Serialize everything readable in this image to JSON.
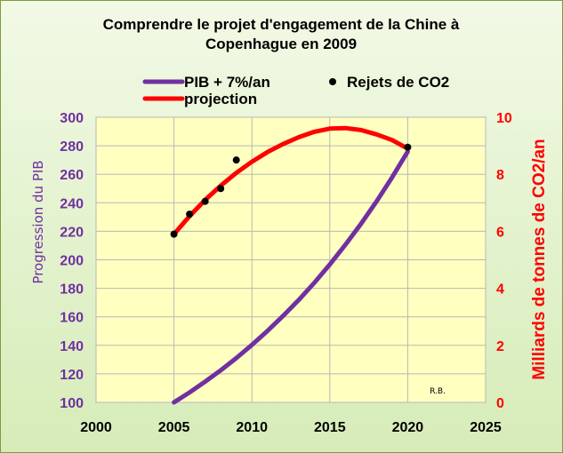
{
  "chart_data": {
    "type": "line",
    "title_lines": [
      "Comprendre le projet d'engagement de la Chine à",
      "Copenhague en 2009"
    ],
    "xlabel": "",
    "ylabel_left": "Progression du PIB",
    "ylabel_right": "Milliards de tonnes de CO2/an",
    "xlim": [
      2000,
      2025
    ],
    "ylim_left": [
      100,
      300
    ],
    "ylim_right": [
      0,
      10
    ],
    "x_ticks": [
      2000,
      2005,
      2010,
      2015,
      2020,
      2025
    ],
    "y_ticks_left": [
      100,
      120,
      140,
      160,
      180,
      200,
      220,
      240,
      260,
      280,
      300
    ],
    "y_ticks_right": [
      0,
      2,
      4,
      6,
      8,
      10
    ],
    "grid": true,
    "legend": {
      "placement": "top",
      "entries": [
        {
          "label": "PIB + 7%/an",
          "color": "#7030a0",
          "kind": "line"
        },
        {
          "label": "Rejets de CO2",
          "color": "#000000",
          "kind": "marker"
        },
        {
          "label": "projection",
          "color": "#ff0000",
          "kind": "line"
        }
      ]
    },
    "series": [
      {
        "name": "PIB + 7%/an",
        "axis": "left",
        "color": "#7030a0",
        "x": [
          2005,
          2006,
          2007,
          2008,
          2009,
          2010,
          2011,
          2012,
          2013,
          2014,
          2015,
          2016,
          2017,
          2018,
          2019,
          2020
        ],
        "values": [
          100,
          107,
          114.5,
          122.5,
          131.1,
          140.3,
          150.1,
          160.6,
          171.8,
          183.8,
          196.7,
          210.5,
          225.2,
          241,
          257.9,
          275.9
        ]
      },
      {
        "name": "projection",
        "axis": "right",
        "color": "#ff0000",
        "x": [
          2005,
          2006,
          2007,
          2008,
          2009,
          2010,
          2011,
          2012,
          2013,
          2014,
          2015,
          2016,
          2017,
          2018,
          2019,
          2020
        ],
        "values": [
          5.9,
          6.53,
          7.1,
          7.6,
          8.05,
          8.44,
          8.78,
          9.06,
          9.3,
          9.49,
          9.6,
          9.62,
          9.55,
          9.4,
          9.2,
          8.9
        ]
      },
      {
        "name": "Rejets de CO2",
        "axis": "right",
        "color": "#000000",
        "kind": "scatter",
        "x": [
          2005,
          2006,
          2007,
          2008,
          2009,
          2020
        ],
        "values": [
          5.9,
          6.6,
          7.05,
          7.5,
          8.5,
          8.95
        ]
      }
    ],
    "annotations": [
      "R.B."
    ]
  }
}
